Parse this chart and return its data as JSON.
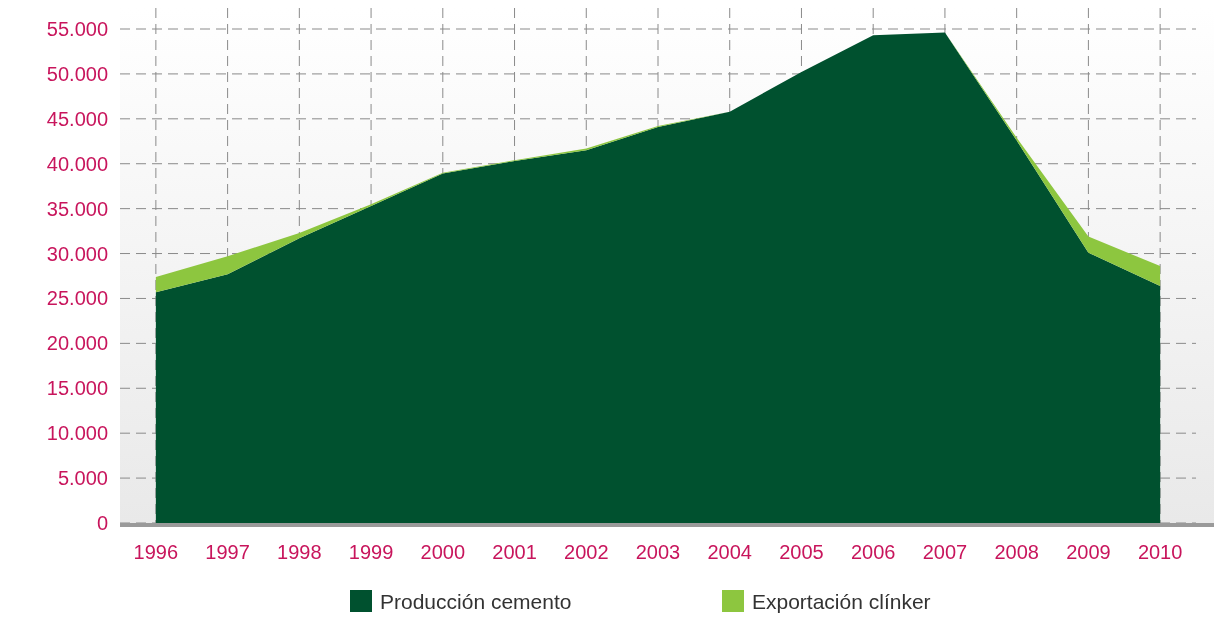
{
  "chart_data": {
    "type": "area",
    "stacked": true,
    "categories": [
      "1996",
      "1997",
      "1998",
      "1999",
      "2000",
      "2001",
      "2002",
      "2003",
      "2004",
      "2005",
      "2006",
      "2007",
      "2008",
      "2009",
      "2010"
    ],
    "series": [
      {
        "name": "Producción cemento",
        "color": "#00512f",
        "values": [
          25700,
          27700,
          31700,
          35300,
          38900,
          40300,
          41500,
          44100,
          45800,
          50200,
          54300,
          54600,
          42600,
          30100,
          26400
        ]
      },
      {
        "name": "Exportación clínker",
        "color": "#8dc63f",
        "values": [
          1700,
          2000,
          600,
          200,
          100,
          100,
          200,
          100,
          0,
          0,
          0,
          0,
          300,
          1800,
          2200
        ]
      }
    ],
    "ylim": [
      0,
      55000
    ],
    "yticks": [
      {
        "value": 0,
        "label": "0"
      },
      {
        "value": 5000,
        "label": "5.000"
      },
      {
        "value": 10000,
        "label": "10.000"
      },
      {
        "value": 15000,
        "label": "15.000"
      },
      {
        "value": 20000,
        "label": "20.000"
      },
      {
        "value": 25000,
        "label": "25.000"
      },
      {
        "value": 30000,
        "label": "30.000"
      },
      {
        "value": 35000,
        "label": "35.000"
      },
      {
        "value": 40000,
        "label": "40.000"
      },
      {
        "value": 45000,
        "label": "45.000"
      },
      {
        "value": 50000,
        "label": "50.000"
      },
      {
        "value": 55000,
        "label": "55.000"
      }
    ],
    "grid": true,
    "legend": "bottom"
  }
}
